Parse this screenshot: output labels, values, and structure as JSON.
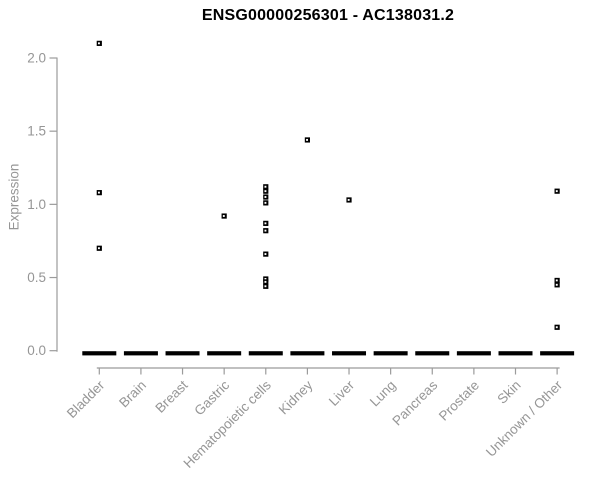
{
  "chart_data": {
    "type": "scatter",
    "title": "ENSG00000256301 - AC138031.2",
    "xlabel": "",
    "ylabel": "Expression",
    "ylim": [
      0.0,
      2.0
    ],
    "yticks": [
      "0.0",
      "0.5",
      "1.0",
      "1.5",
      "2.0"
    ],
    "grid": false,
    "legend": "none",
    "marker": "small-open-black-square",
    "categories": [
      "Bladder",
      "Brain",
      "Breast",
      "Gastric",
      "Hematopoietic cells",
      "Kidney",
      "Liver",
      "Lung",
      "Pancreas",
      "Prostate",
      "Skin",
      "Unknown / Other"
    ],
    "series": [
      {
        "name": "Bladder",
        "values": [
          2.1,
          1.08,
          0.7
        ]
      },
      {
        "name": "Brain",
        "values": []
      },
      {
        "name": "Breast",
        "values": []
      },
      {
        "name": "Gastric",
        "values": [
          0.92
        ]
      },
      {
        "name": "Hematopoietic cells",
        "values": [
          1.12,
          1.09,
          1.05,
          1.01,
          0.87,
          0.82,
          0.66,
          0.49,
          0.47,
          0.44
        ]
      },
      {
        "name": "Kidney",
        "values": [
          1.44
        ]
      },
      {
        "name": "Liver",
        "values": [
          1.03
        ]
      },
      {
        "name": "Lung",
        "values": []
      },
      {
        "name": "Pancreas",
        "values": []
      },
      {
        "name": "Prostate",
        "values": []
      },
      {
        "name": "Skin",
        "values": []
      },
      {
        "name": "Unknown / Other",
        "values": [
          1.09,
          0.48,
          0.45,
          0.16
        ]
      }
    ],
    "zero_dash_every_category": true,
    "colors": {
      "marker": "#000000",
      "zero_dash": "#000000",
      "axis_line": "#9b9b9b",
      "axis_text": "#969696",
      "title": "#000000",
      "background": "#ffffff"
    }
  }
}
